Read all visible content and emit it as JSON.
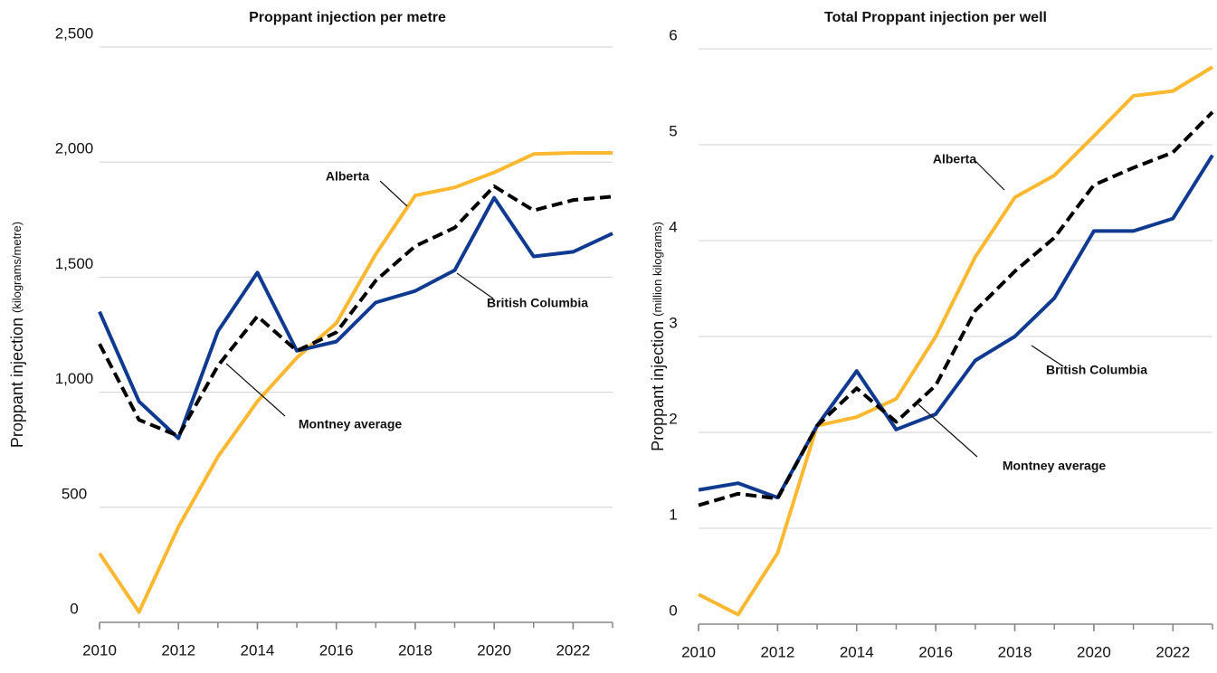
{
  "chart_data": [
    {
      "type": "line",
      "title": "Proppant injection per metre",
      "ylabel": "Proppant injection",
      "ylabel_unit": "(kilograms/metre)",
      "x": [
        2010,
        2011,
        2012,
        2013,
        2014,
        2015,
        2016,
        2017,
        2018,
        2019,
        2020,
        2021,
        2022,
        2023
      ],
      "xlim": [
        2010,
        2023
      ],
      "xticks": [
        2010,
        2012,
        2014,
        2016,
        2018,
        2020,
        2022
      ],
      "ylim": [
        0,
        2500
      ],
      "yticks": [
        0,
        500,
        {
          "value": 1000,
          "label": "1,000"
        },
        {
          "value": 1500,
          "label": "1,500"
        },
        {
          "value": 2000,
          "label": "2,000"
        },
        {
          "value": 2500,
          "label": "2,500"
        }
      ],
      "grid": true,
      "series": [
        {
          "name": "Alberta",
          "color": "#fbb830",
          "values": [
            300,
            45,
            415,
            720,
            960,
            1150,
            1300,
            1600,
            1855,
            1890,
            1955,
            2035,
            2040,
            2040
          ]
        },
        {
          "name": "British Columbia",
          "color": "#0f3a8f",
          "values": [
            1350,
            960,
            800,
            1265,
            1520,
            1180,
            1220,
            1390,
            1440,
            1530,
            1845,
            1590,
            1610,
            1690
          ]
        },
        {
          "name": "Montney average",
          "color": "#000000",
          "dashed": true,
          "values": [
            1210,
            880,
            810,
            1115,
            1330,
            1180,
            1260,
            1485,
            1635,
            1715,
            1895,
            1790,
            1835,
            1850
          ]
        }
      ]
    },
    {
      "type": "line",
      "title": "Total Proppant injection per well",
      "ylabel": "Proppant injection",
      "ylabel_unit": "(million kilograms)",
      "x": [
        2010,
        2011,
        2012,
        2013,
        2014,
        2015,
        2016,
        2017,
        2018,
        2019,
        2020,
        2021,
        2022,
        2023
      ],
      "xlim": [
        2010,
        2023
      ],
      "xticks": [
        2010,
        2012,
        2014,
        2016,
        2018,
        2020,
        2022
      ],
      "ylim": [
        0,
        6
      ],
      "yticks": [
        0,
        1,
        2,
        3,
        4,
        5,
        6
      ],
      "grid": true,
      "series": [
        {
          "name": "Alberta",
          "color": "#fbb830",
          "values": [
            0.31,
            0.1,
            0.74,
            2.07,
            2.16,
            2.35,
            3.0,
            3.83,
            4.45,
            4.68,
            5.09,
            5.51,
            5.56,
            5.81
          ]
        },
        {
          "name": "British Columbia",
          "color": "#0f3a8f",
          "values": [
            1.4,
            1.47,
            1.32,
            2.07,
            2.64,
            2.03,
            2.19,
            2.75,
            3.0,
            3.4,
            4.1,
            4.1,
            4.23,
            4.89
          ]
        },
        {
          "name": "Montney average",
          "color": "#000000",
          "dashed": true,
          "values": [
            1.24,
            1.36,
            1.31,
            2.07,
            2.46,
            2.11,
            2.49,
            3.27,
            3.68,
            4.03,
            4.58,
            4.76,
            4.92,
            5.34
          ]
        }
      ]
    }
  ]
}
